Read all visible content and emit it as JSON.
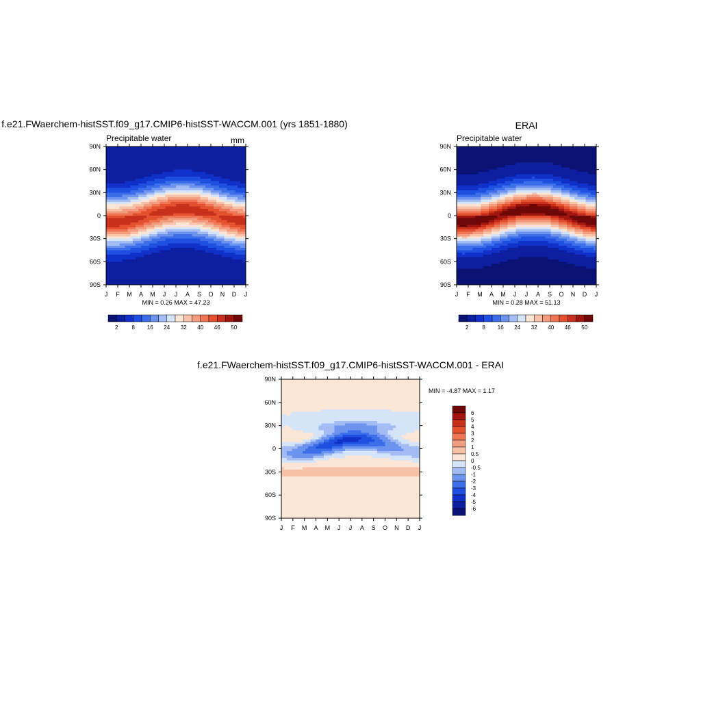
{
  "colors": {
    "main": [
      "#0a1273",
      "#0d1ea1",
      "#0f30c9",
      "#1f4fe0",
      "#3b6ee8",
      "#6c94ef",
      "#a3bcf4",
      "#d6e4fa",
      "#fbe5d6",
      "#f8c2a9",
      "#f29d7f",
      "#ee7654",
      "#e5512e",
      "#c9301c",
      "#a0150e",
      "#6e0707"
    ],
    "diff": [
      "#0a1273",
      "#0d1ea1",
      "#0f30c9",
      "#1f4fe0",
      "#3b6ee8",
      "#6c94ef",
      "#a3bcf4",
      "#d6e4fa",
      "#fbe5d6",
      "#f8c2a9",
      "#f29d7f",
      "#ee7654",
      "#e5512e",
      "#c9301c",
      "#a0150e",
      "#6e0707"
    ]
  },
  "chart_data": [
    {
      "id": "model",
      "type": "heatmap",
      "title": "f.e21.FWaerchem-histSST.f09_g17.CMIP6-histSST-WACCM.001 (yrs 1851-1880)",
      "left_label": "Precipitable water",
      "right_label": "mm",
      "stats_label": "MIN =   0.26 MAX =  47.23",
      "min": 0.26,
      "max": 47.23,
      "x": [
        "J",
        "F",
        "M",
        "A",
        "M",
        "J",
        "J",
        "A",
        "S",
        "O",
        "N",
        "D",
        "J"
      ],
      "y_ticks": [
        "90N",
        "60N",
        "30N",
        "0",
        "30S",
        "60S",
        "90S"
      ],
      "ylim": [
        -90,
        90
      ],
      "colorbar": {
        "levels": [
          2,
          5,
          8,
          12,
          16,
          20,
          24,
          28,
          32,
          36,
          40,
          43,
          46,
          48,
          50
        ],
        "labels": [
          "2",
          "8",
          "16",
          "24",
          "32",
          "40",
          "46",
          "50"
        ]
      }
    },
    {
      "id": "obs",
      "type": "heatmap",
      "title": "ERAI",
      "left_label": "Precipitable water",
      "right_label": "",
      "stats_label": "MIN =   0.28 MAX =  51.13",
      "min": 0.28,
      "max": 51.13,
      "x": [
        "J",
        "F",
        "M",
        "A",
        "M",
        "J",
        "J",
        "A",
        "S",
        "O",
        "N",
        "D",
        "J"
      ],
      "y_ticks": [
        "90N",
        "60N",
        "30N",
        "0",
        "30S",
        "60S",
        "90S"
      ],
      "ylim": [
        -90,
        90
      ],
      "colorbar": {
        "levels": [
          2,
          5,
          8,
          12,
          16,
          20,
          24,
          28,
          32,
          36,
          40,
          43,
          46,
          48,
          50
        ],
        "labels": [
          "2",
          "8",
          "16",
          "24",
          "32",
          "40",
          "46",
          "50"
        ]
      }
    },
    {
      "id": "diff",
      "type": "heatmap",
      "title": "f.e21.FWaerchem-histSST.f09_g17.CMIP6-histSST-WACCM.001 - ERAI",
      "stats_label": "MIN =  -4.87 MAX =   1.17",
      "min": -4.87,
      "max": 1.17,
      "x": [
        "J",
        "F",
        "M",
        "A",
        "M",
        "J",
        "J",
        "A",
        "S",
        "O",
        "N",
        "D",
        "J"
      ],
      "y_ticks": [
        "90N",
        "60N",
        "30N",
        "0",
        "30S",
        "60S",
        "90S"
      ],
      "ylim": [
        -90,
        90
      ],
      "colorbar": {
        "levels": [
          -6,
          -5,
          -4,
          -3,
          -2,
          -1,
          -0.5,
          0,
          0.5,
          1,
          2,
          3,
          4,
          5,
          6
        ],
        "labels": [
          "6",
          "5",
          "4",
          "3",
          "2",
          "1",
          "0.5",
          "0",
          "-0.5",
          "-1",
          "-2",
          "-3",
          "-4",
          "-5",
          "-6"
        ]
      }
    }
  ]
}
